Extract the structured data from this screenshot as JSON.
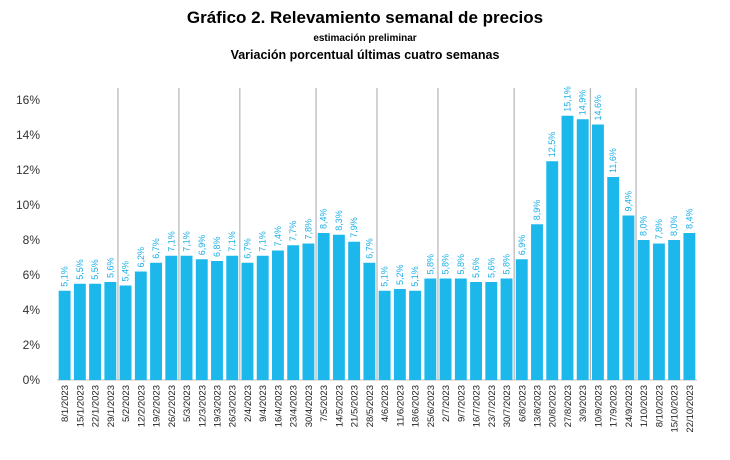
{
  "chart_data": {
    "type": "bar",
    "title": "Gráfico 2. Relevamiento semanal de precios",
    "subtitle": "estimación preliminar",
    "subtitle2": "Variación porcentual últimas cuatro semanas",
    "xlabel": "",
    "ylabel": "",
    "ylim": [
      0,
      16
    ],
    "y_ticks": [
      "0%",
      "2%",
      "4%",
      "6%",
      "8%",
      "10%",
      "12%",
      "14%",
      "16%"
    ],
    "bar_color": "#1cb8ec",
    "label_color": "#1aaee8",
    "grid": false,
    "month_separators_after": [
      "29/1/2023",
      "26/2/2023",
      "26/3/2023",
      "30/4/2023",
      "28/5/2023",
      "25/6/2023",
      "30/7/2023",
      "3/9/2023",
      "24/9/2023"
    ],
    "categories": [
      "8/1/2023",
      "15/1/2023",
      "22/1/2023",
      "29/1/2023",
      "5/2/2023",
      "12/2/2023",
      "19/2/2023",
      "26/2/2023",
      "5/3/2023",
      "12/3/2023",
      "19/3/2023",
      "26/3/2023",
      "2/4/2023",
      "9/4/2023",
      "16/4/2023",
      "23/4/2023",
      "30/4/2023",
      "7/5/2023",
      "14/5/2023",
      "21/5/2023",
      "28/5/2023",
      "4/6/2023",
      "11/6/2023",
      "18/6/2023",
      "25/6/2023",
      "2/7/2023",
      "9/7/2023",
      "16/7/2023",
      "23/7/2023",
      "30/7/2023",
      "6/8/2023",
      "13/8/2023",
      "20/8/2023",
      "27/8/2023",
      "3/9/2023",
      "10/9/2023",
      "17/9/2023",
      "24/9/2023",
      "1/10/2023",
      "8/10/2023",
      "15/10/2023",
      "22/10/2023"
    ],
    "values": [
      5.1,
      5.5,
      5.5,
      5.6,
      5.4,
      6.2,
      6.7,
      7.1,
      7.1,
      6.9,
      6.8,
      7.1,
      6.7,
      7.1,
      7.4,
      7.7,
      7.8,
      8.4,
      8.3,
      7.9,
      6.7,
      5.1,
      5.2,
      5.1,
      5.8,
      5.8,
      5.8,
      5.6,
      5.6,
      5.8,
      6.9,
      8.9,
      12.5,
      15.1,
      14.9,
      14.6,
      11.6,
      9.4,
      8.0,
      7.8,
      8.0,
      8.4
    ],
    "data_labels": [
      "5,1%",
      "5,5%",
      "5,5%",
      "5,6%",
      "5,4%",
      "6,2%",
      "6,7%",
      "7,1%",
      "7,1%",
      "6,9%",
      "6,8%",
      "7,1%",
      "6,7%",
      "7,1%",
      "7,4%",
      "7,7%",
      "7,8%",
      "8,4%",
      "8,3%",
      "7,9%",
      "6,7%",
      "5,1%",
      "5,2%",
      "5,1%",
      "5,8%",
      "5,8%",
      "5,8%",
      "5,6%",
      "5,6%",
      "5,8%",
      "6,9%",
      "8,9%",
      "12,5%",
      "15,1%",
      "14,9%",
      "14,6%",
      "11,6%",
      "9,4%",
      "8,0%",
      "7,8%",
      "8,0%",
      "8,4%"
    ]
  }
}
